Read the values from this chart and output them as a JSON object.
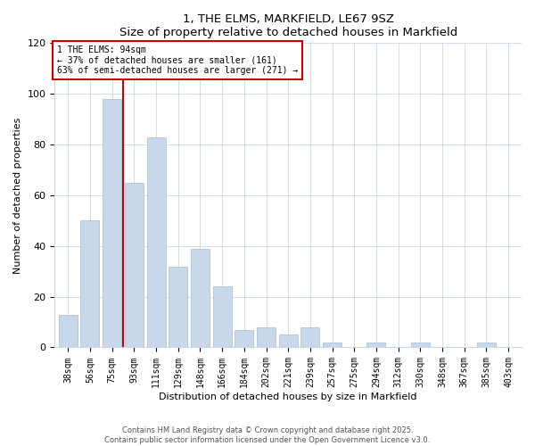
{
  "title": "1, THE ELMS, MARKFIELD, LE67 9SZ",
  "subtitle": "Size of property relative to detached houses in Markfield",
  "xlabel": "Distribution of detached houses by size in Markfield",
  "ylabel": "Number of detached properties",
  "categories": [
    "38sqm",
    "56sqm",
    "75sqm",
    "93sqm",
    "111sqm",
    "129sqm",
    "148sqm",
    "166sqm",
    "184sqm",
    "202sqm",
    "221sqm",
    "239sqm",
    "257sqm",
    "275sqm",
    "294sqm",
    "312sqm",
    "330sqm",
    "348sqm",
    "367sqm",
    "385sqm",
    "403sqm"
  ],
  "values": [
    13,
    50,
    98,
    65,
    83,
    32,
    39,
    24,
    7,
    8,
    5,
    8,
    2,
    0,
    2,
    0,
    2,
    0,
    0,
    2,
    0
  ],
  "bar_color": "#c8d8eb",
  "bar_edge_color": "#b0c4d8",
  "vline_color": "#cc0000",
  "annotation_box_text": "1 THE ELMS: 94sqm\n← 37% of detached houses are smaller (161)\n63% of semi-detached houses are larger (271) →",
  "ylim": [
    0,
    120
  ],
  "yticks": [
    0,
    20,
    40,
    60,
    80,
    100,
    120
  ],
  "footer_text": "Contains HM Land Registry data © Crown copyright and database right 2025.\nContains public sector information licensed under the Open Government Licence v3.0.",
  "bg_color": "#ffffff",
  "grid_color": "#ccd8e4"
}
